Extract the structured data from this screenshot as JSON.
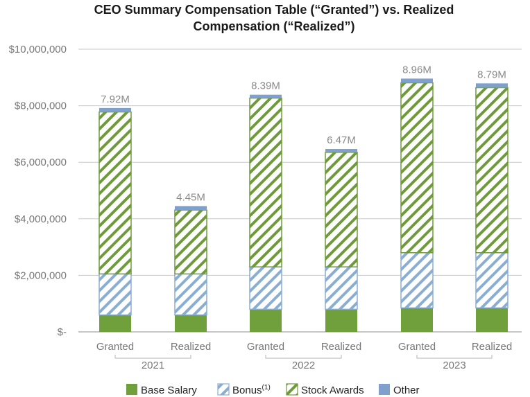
{
  "chart_data": {
    "type": "bar",
    "stacked": true,
    "title_lines": [
      "CEO Summary Compensation Table (“Granted”) vs. Realized",
      "Compensation (“Realized”)"
    ],
    "categories": [
      "Granted",
      "Realized",
      "Granted",
      "Realized",
      "Granted",
      "Realized"
    ],
    "groups": [
      {
        "label": "2021",
        "span": [
          0,
          1
        ]
      },
      {
        "label": "2022",
        "span": [
          2,
          3
        ]
      },
      {
        "label": "2023",
        "span": [
          4,
          5
        ]
      }
    ],
    "series": [
      {
        "name": "Base Salary",
        "style": "solid",
        "color": "#70a03c",
        "values": [
          600000,
          600000,
          800000,
          800000,
          850000,
          850000
        ]
      },
      {
        "name": "Bonus",
        "superscript": "(1)",
        "style": "hatch",
        "color": "#8aaed2",
        "values": [
          1450000,
          1450000,
          1500000,
          1500000,
          1950000,
          1950000
        ]
      },
      {
        "name": "Stock Awards",
        "style": "hatch",
        "color": "#6e9a3a",
        "values": [
          5730000,
          2260000,
          5970000,
          4050000,
          6010000,
          5840000
        ]
      },
      {
        "name": "Other",
        "style": "solid",
        "color": "#7f9fcc",
        "values": [
          140000,
          140000,
          120000,
          120000,
          150000,
          150000
        ]
      }
    ],
    "totals_labels": [
      "7.92M",
      "4.45M",
      "8.39M",
      "6.47M",
      "8.96M",
      "8.79M"
    ],
    "totals_values": [
      7920000,
      4450000,
      8390000,
      6470000,
      8960000,
      8790000
    ],
    "y_ticks": [
      0,
      2000000,
      4000000,
      6000000,
      8000000,
      10000000
    ],
    "y_tick_labels": [
      "$-",
      "$2,000,000",
      "$4,000,000",
      "$6,000,000",
      "$8,000,000",
      "$10,000,000"
    ],
    "ylim": [
      0,
      10000000
    ],
    "grid": true,
    "legend_position": "bottom"
  }
}
